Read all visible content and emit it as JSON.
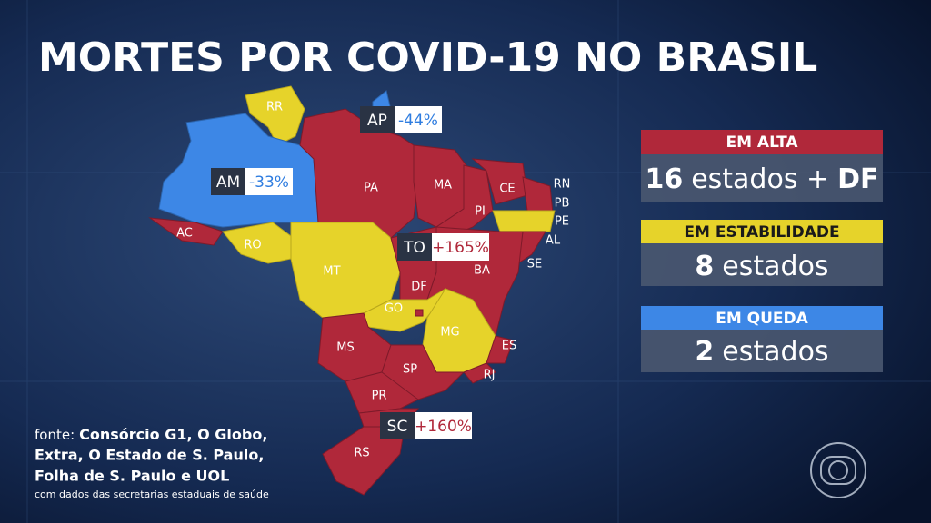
{
  "title": "MORTES POR COVID-19 NO BRASIL",
  "map": {
    "states": [
      {
        "label": "RR"
      },
      {
        "label": "AM"
      },
      {
        "label": "AP"
      },
      {
        "label": "PA"
      },
      {
        "label": "MA"
      },
      {
        "label": "CE"
      },
      {
        "label": "RN"
      },
      {
        "label": "PB"
      },
      {
        "label": "PE"
      },
      {
        "label": "AL"
      },
      {
        "label": "SE"
      },
      {
        "label": "PI"
      },
      {
        "label": "AC"
      },
      {
        "label": "RO"
      },
      {
        "label": "TO"
      },
      {
        "label": "BA"
      },
      {
        "label": "MT"
      },
      {
        "label": "DF"
      },
      {
        "label": "GO"
      },
      {
        "label": "MG"
      },
      {
        "label": "ES"
      },
      {
        "label": "MS"
      },
      {
        "label": "SP"
      },
      {
        "label": "RJ"
      },
      {
        "label": "PR"
      },
      {
        "label": "SC"
      },
      {
        "label": "RS"
      }
    ]
  },
  "callouts": [
    {
      "state": "AP",
      "change": "-44%"
    },
    {
      "state": "AM",
      "change": "-33%"
    },
    {
      "state": "TO",
      "change": "+165%"
    },
    {
      "state": "SC",
      "change": "+160%"
    }
  ],
  "legend": [
    {
      "heading": "EM ALTA",
      "count": "16",
      "text": "estados +",
      "extra": "DF"
    },
    {
      "heading": "EM ESTABILIDADE",
      "count": "8",
      "text": "estados"
    },
    {
      "heading": "EM QUEDA",
      "count": "2",
      "text": "estados"
    }
  ],
  "source": {
    "prefix": "fonte:",
    "lines": [
      "Consórcio G1, O Globo,",
      "Extra, O Estado de S. Paulo,",
      "Folha de S. Paulo e UOL"
    ],
    "note": "com dados das secretarias estaduais de saúde"
  }
}
